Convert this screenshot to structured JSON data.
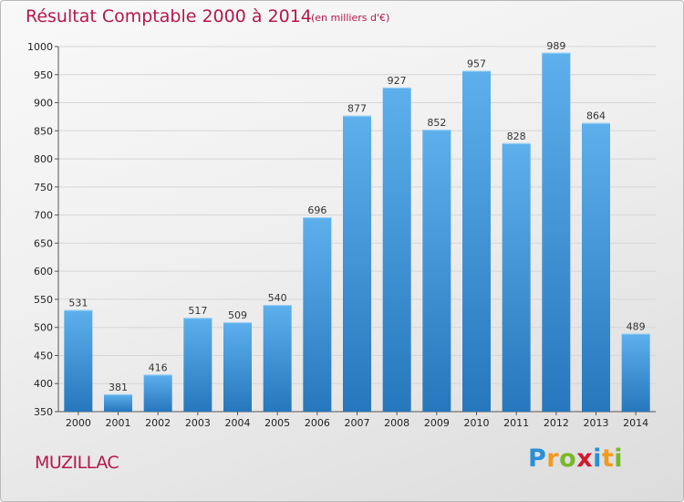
{
  "header": {
    "title": "Résultat Comptable 2000 à 2014",
    "subtitle": "(en milliers d'€)"
  },
  "footer": {
    "place": "MUZILLAC",
    "logo_text": "Proxiti"
  },
  "colors": {
    "title": "#b5174e",
    "bar_top": "#5db0ec",
    "bar_bottom": "#2677bd"
  },
  "chart_data": {
    "type": "bar",
    "title": "Résultat Comptable 2000 à 2014",
    "subtitle": "(en milliers d'€)",
    "categories": [
      "2000",
      "2001",
      "2002",
      "2003",
      "2004",
      "2005",
      "2006",
      "2007",
      "2008",
      "2009",
      "2010",
      "2011",
      "2012",
      "2013",
      "2014"
    ],
    "values": [
      531,
      381,
      416,
      517,
      509,
      540,
      696,
      877,
      927,
      852,
      957,
      828,
      989,
      864,
      489
    ],
    "ylim": [
      350,
      1000
    ],
    "yticks": [
      350,
      400,
      450,
      500,
      550,
      600,
      650,
      700,
      750,
      800,
      850,
      900,
      950,
      1000
    ],
    "grid": true,
    "data_labels": true
  }
}
